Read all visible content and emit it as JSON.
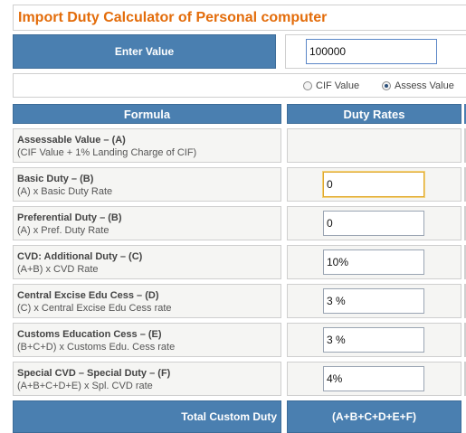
{
  "title": "Import Duty Calculator of Personal computer",
  "enter": {
    "label": "Enter Value",
    "value": "100000"
  },
  "radio": [
    {
      "label": "CIF Value",
      "checked": false
    },
    {
      "label": "Assess Value",
      "checked": true
    }
  ],
  "header": {
    "formula": "Formula",
    "rates": "Duty Rates"
  },
  "rows": [
    {
      "title": "Assessable Value – (A)",
      "desc": "(CIF Value + 1% Landing Charge of CIF)",
      "value": null
    },
    {
      "title": "Basic Duty – (B)",
      "desc": "(A) x Basic Duty Rate",
      "value": "0"
    },
    {
      "title": "Preferential Duty – (B)",
      "desc": "(A) x Pref. Duty Rate",
      "value": "0"
    },
    {
      "title": "CVD: Additional Duty – (C)",
      "desc": "(A+B) x CVD Rate",
      "value": "10%"
    },
    {
      "title": "Central Excise Edu Cess – (D)",
      "desc": "(C) x Central Excise Edu Cess rate",
      "value": "3 %"
    },
    {
      "title": "Customs Education Cess – (E)",
      "desc": "(B+C+D) x Customs Edu. Cess rate",
      "value": "3 %"
    },
    {
      "title": "Special CVD – Special Duty – (F)",
      "desc": "(A+B+C+D+E) x Spl. CVD rate",
      "value": "4%"
    }
  ],
  "total": {
    "label": "Total Custom Duty",
    "formula": "(A+B+C+D+E+F)"
  },
  "colors": {
    "title": "#e36c0a",
    "header_blue": "#4a7fb0",
    "cell_bg": "#f5f5f3",
    "border": "#cfcfcf"
  }
}
